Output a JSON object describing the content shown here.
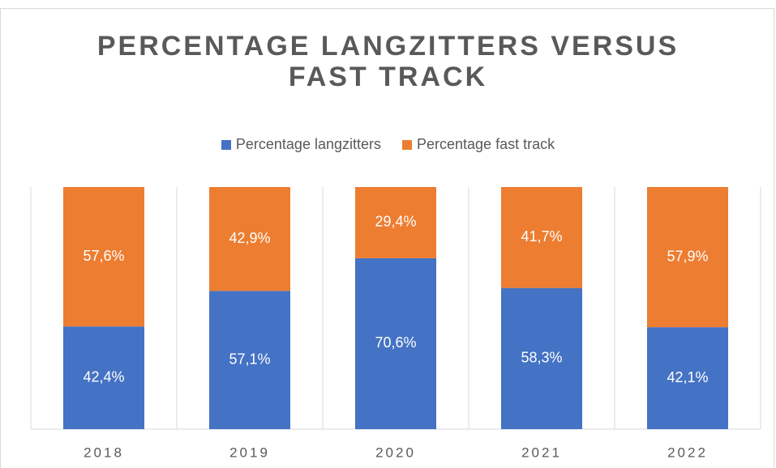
{
  "chart_data": {
    "type": "stacked_bar",
    "title": "PERCENTAGE LANGZITTERS VERSUS FAST TRACK",
    "categories": [
      "2018",
      "2019",
      "2020",
      "2021",
      "2022"
    ],
    "series": [
      {
        "name": "Percentage langzitters",
        "color": "#4472c4",
        "values": [
          42.4,
          57.1,
          70.6,
          58.3,
          42.1
        ],
        "value_labels": [
          "42,4%",
          "57,1%",
          "70,6%",
          "58,3%",
          "42,1%"
        ]
      },
      {
        "name": "Percentage fast track",
        "color": "#ed7d31",
        "values": [
          57.6,
          42.9,
          29.4,
          41.7,
          57.9
        ],
        "value_labels": [
          "57,6%",
          "42,9%",
          "29,4%",
          "41,7%",
          "57,9%"
        ]
      }
    ],
    "ylim": [
      0,
      100
    ],
    "legend": "top"
  }
}
